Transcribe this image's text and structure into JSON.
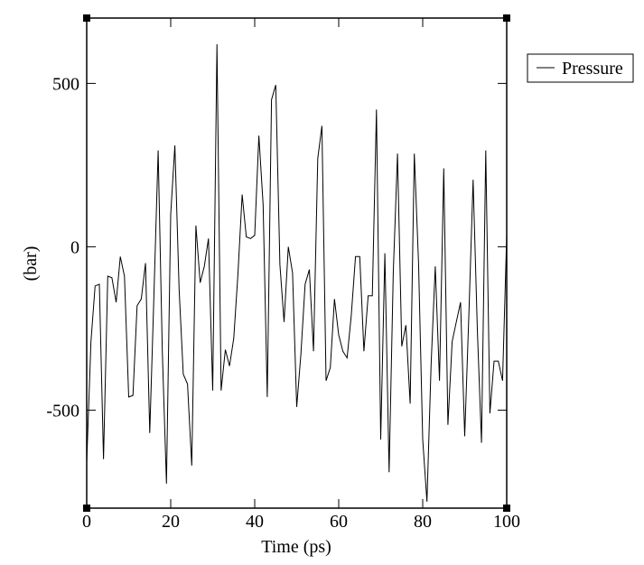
{
  "chart_data": {
    "type": "line",
    "xlabel": "Time (ps)",
    "ylabel": "(bar)",
    "xlim": [
      0,
      100
    ],
    "ylim": [
      -800,
      700
    ],
    "xticks": [
      0,
      20,
      40,
      60,
      80,
      100
    ],
    "yticks": [
      -500,
      0,
      500
    ],
    "x_tick_labels": [
      "0",
      "20",
      "40",
      "60",
      "80",
      "100"
    ],
    "y_tick_labels": [
      "-500",
      "0",
      "500"
    ],
    "grid": false,
    "legend": {
      "position": "outside-right-top",
      "entries": [
        "Pressure"
      ]
    },
    "line_color": "#000000",
    "series": [
      {
        "name": "Pressure",
        "x": [
          0,
          1,
          2,
          3,
          4,
          5,
          6,
          7,
          8,
          9,
          10,
          11,
          12,
          13,
          14,
          15,
          16,
          17,
          18,
          19,
          20,
          21,
          22,
          23,
          24,
          25,
          26,
          27,
          28,
          29,
          30,
          31,
          32,
          33,
          34,
          35,
          36,
          37,
          38,
          39,
          40,
          41,
          42,
          43,
          44,
          45,
          46,
          47,
          48,
          49,
          50,
          51,
          52,
          53,
          54,
          55,
          56,
          57,
          58,
          59,
          60,
          61,
          62,
          63,
          64,
          65,
          66,
          67,
          68,
          69,
          70,
          71,
          72,
          73,
          74,
          75,
          76,
          77,
          78,
          79,
          80,
          81,
          82,
          83,
          84,
          85,
          86,
          87,
          88,
          89,
          90,
          91,
          92,
          93,
          94,
          95,
          96,
          97,
          98,
          99,
          100
        ],
        "y": [
          -660,
          -290,
          -120,
          -115,
          -650,
          -90,
          -95,
          -170,
          -30,
          -90,
          -460,
          -455,
          -180,
          -160,
          -50,
          -570,
          -150,
          295,
          -320,
          -725,
          100,
          310,
          -130,
          -390,
          -420,
          -670,
          65,
          -110,
          -60,
          25,
          -440,
          620,
          -440,
          -315,
          -365,
          -280,
          -85,
          160,
          30,
          25,
          35,
          340,
          130,
          -460,
          450,
          495,
          -55,
          -230,
          0,
          -80,
          -490,
          -330,
          -115,
          -70,
          -320,
          270,
          370,
          -410,
          -370,
          -160,
          -270,
          -320,
          -340,
          -210,
          -30,
          -30,
          -320,
          -150,
          -150,
          420,
          -590,
          -20,
          -690,
          -80,
          285,
          -305,
          -240,
          -480,
          285,
          -50,
          -590,
          -780,
          -360,
          -60,
          -410,
          240,
          -545,
          -290,
          -230,
          -170,
          -580,
          -200,
          205,
          -255,
          -600,
          295,
          -510,
          -350,
          -350,
          -410,
          35
        ]
      }
    ]
  }
}
